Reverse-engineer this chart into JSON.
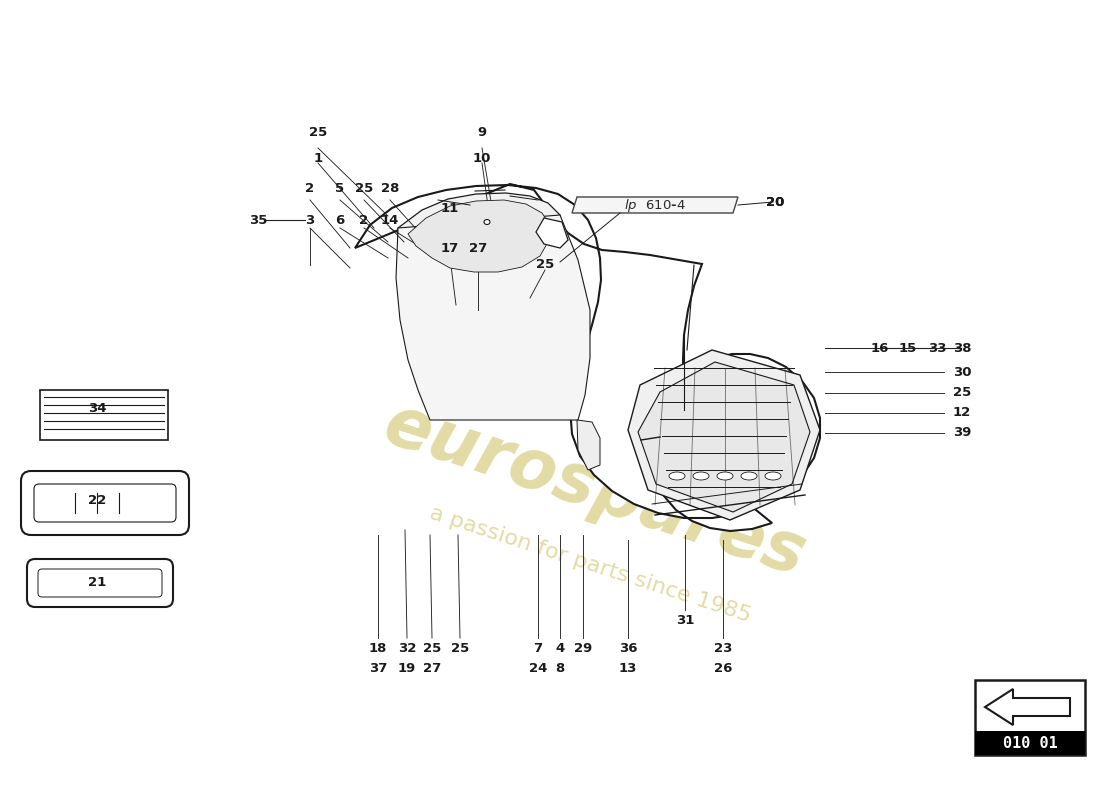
{
  "bg_color": "#ffffff",
  "line_color": "#1a1a1a",
  "watermark_color_1": "#c8b84a",
  "watermark_color_2": "#c8b84a",
  "page_number": "010 01",
  "badge_text": "lp  610-4",
  "top_left_labels": [
    [
      "25",
      318,
      133
    ],
    [
      "1",
      318,
      158
    ],
    [
      "2",
      310,
      188
    ],
    [
      "5",
      340,
      188
    ],
    [
      "25",
      364,
      188
    ],
    [
      "28",
      390,
      188
    ],
    [
      "35",
      258,
      220
    ],
    [
      "3",
      310,
      220
    ],
    [
      "6",
      340,
      220
    ],
    [
      "2",
      364,
      220
    ],
    [
      "14",
      390,
      220
    ],
    [
      "11",
      450,
      208
    ],
    [
      "9",
      482,
      133
    ],
    [
      "10",
      482,
      158
    ],
    [
      "17",
      450,
      248
    ],
    [
      "27",
      478,
      248
    ],
    [
      "25",
      545,
      265
    ]
  ],
  "right_labels": [
    [
      "20",
      775,
      202
    ],
    [
      "16",
      880,
      348
    ],
    [
      "15",
      908,
      348
    ],
    [
      "33",
      937,
      348
    ],
    [
      "38",
      962,
      348
    ],
    [
      "30",
      962,
      372
    ],
    [
      "25",
      962,
      393
    ],
    [
      "12",
      962,
      413
    ],
    [
      "39",
      962,
      433
    ]
  ],
  "bottom_labels": [
    [
      "18",
      378,
      648
    ],
    [
      "32",
      407,
      648
    ],
    [
      "25",
      432,
      648
    ],
    [
      "25",
      460,
      648
    ],
    [
      "37",
      378,
      668
    ],
    [
      "19",
      407,
      668
    ],
    [
      "27",
      432,
      668
    ],
    [
      "7",
      538,
      648
    ],
    [
      "4",
      560,
      648
    ],
    [
      "29",
      583,
      648
    ],
    [
      "24",
      538,
      668
    ],
    [
      "8",
      560,
      668
    ],
    [
      "36",
      628,
      648
    ],
    [
      "13",
      628,
      668
    ],
    [
      "31",
      685,
      620
    ],
    [
      "23",
      723,
      648
    ],
    [
      "26",
      723,
      668
    ]
  ],
  "side_labels": [
    [
      "34",
      97,
      408
    ],
    [
      "22",
      97,
      500
    ],
    [
      "21",
      97,
      582
    ]
  ]
}
